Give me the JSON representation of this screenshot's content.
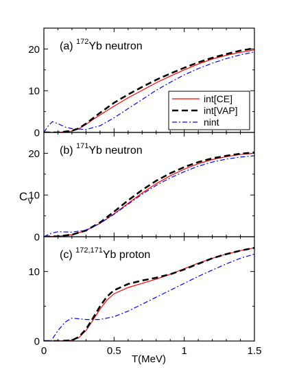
{
  "figure": {
    "ylabel_main": "C",
    "ylabel_sub": "V",
    "xlabel": "T(MeV)"
  },
  "legend": {
    "entries": [
      {
        "label": "int[CE]",
        "color": "#ff0000",
        "style": "solid"
      },
      {
        "label": "int[VAP]",
        "color": "#000000",
        "style": "dashed"
      },
      {
        "label": "nint",
        "color": "#0000ff",
        "style": "dashdot"
      }
    ]
  },
  "chart_data": [
    {
      "type": "line",
      "panel_label": {
        "prefix": "(a) ",
        "sup": "172",
        "suffix": "Yb neutron"
      },
      "xlim": [
        0,
        1.5
      ],
      "ylim": [
        0,
        25
      ],
      "x_ticks": [
        0,
        0.5,
        1,
        1.5
      ],
      "y_ticks": [
        0,
        10,
        20
      ],
      "series": [
        {
          "name": "int[CE]",
          "x": [
            0,
            0.1,
            0.2,
            0.25,
            0.3,
            0.35,
            0.4,
            0.5,
            0.6,
            0.7,
            0.8,
            0.9,
            1.0,
            1.1,
            1.2,
            1.3,
            1.4,
            1.5
          ],
          "y": [
            0,
            0,
            0.3,
            0.9,
            1.9,
            3.1,
            4.2,
            6.3,
            8.3,
            10.1,
            11.9,
            13.5,
            15.0,
            16.4,
            17.6,
            18.5,
            19.2,
            19.8
          ]
        },
        {
          "name": "int[VAP]",
          "x": [
            0,
            0.1,
            0.2,
            0.25,
            0.3,
            0.35,
            0.4,
            0.5,
            0.6,
            0.7,
            0.8,
            0.9,
            1.0,
            1.1,
            1.2,
            1.3,
            1.4,
            1.5
          ],
          "y": [
            0,
            0,
            0.4,
            1.0,
            2.1,
            3.4,
            4.7,
            7.1,
            9.1,
            10.9,
            12.6,
            14.1,
            15.5,
            16.8,
            17.9,
            18.8,
            19.6,
            20.2
          ]
        },
        {
          "name": "nint",
          "x": [
            0,
            0.03,
            0.06,
            0.1,
            0.15,
            0.2,
            0.3,
            0.4,
            0.5,
            0.6,
            0.7,
            0.8,
            0.9,
            1.0,
            1.1,
            1.2,
            1.3,
            1.4,
            1.5
          ],
          "y": [
            0,
            1.5,
            2.6,
            2.1,
            1.3,
            0.9,
            0.7,
            1.6,
            3.5,
            5.7,
            7.9,
            10.1,
            12.0,
            13.8,
            15.3,
            16.6,
            17.7,
            18.6,
            19.3
          ]
        }
      ]
    },
    {
      "type": "line",
      "panel_label": {
        "prefix": "(b) ",
        "sup": "171",
        "suffix": "Yb neutron"
      },
      "xlim": [
        0,
        1.5
      ],
      "ylim": [
        0,
        25
      ],
      "x_ticks": [
        0,
        0.5,
        1,
        1.5
      ],
      "y_ticks": [
        0,
        10,
        20
      ],
      "series": [
        {
          "name": "int[CE]",
          "x": [
            0,
            0.1,
            0.2,
            0.3,
            0.4,
            0.5,
            0.6,
            0.7,
            0.8,
            0.9,
            1.0,
            1.1,
            1.2,
            1.3,
            1.4,
            1.5
          ],
          "y": [
            0,
            0.1,
            0.5,
            1.5,
            3.2,
            5.5,
            8.0,
            10.5,
            12.7,
            14.6,
            16.2,
            17.5,
            18.5,
            19.2,
            19.7,
            20.0
          ]
        },
        {
          "name": "int[VAP]",
          "x": [
            0,
            0.1,
            0.2,
            0.3,
            0.4,
            0.5,
            0.6,
            0.7,
            0.8,
            0.9,
            1.0,
            1.1,
            1.2,
            1.3,
            1.4,
            1.5
          ],
          "y": [
            0,
            0.1,
            0.5,
            1.5,
            3.4,
            6.0,
            8.7,
            11.2,
            13.4,
            15.2,
            16.7,
            17.9,
            18.8,
            19.4,
            19.9,
            20.2
          ]
        },
        {
          "name": "nint",
          "x": [
            0,
            0.05,
            0.1,
            0.2,
            0.3,
            0.4,
            0.5,
            0.6,
            0.7,
            0.8,
            0.9,
            1.0,
            1.1,
            1.2,
            1.3,
            1.4,
            1.5
          ],
          "y": [
            0,
            0.8,
            1.2,
            1.1,
            1.6,
            3.2,
            5.4,
            7.8,
            10.2,
            12.3,
            14.1,
            15.6,
            16.9,
            17.9,
            18.6,
            19.1,
            19.4
          ]
        }
      ]
    },
    {
      "type": "line",
      "panel_label": {
        "prefix": "(c) ",
        "sup": "172,171",
        "suffix": "Yb proton"
      },
      "xlim": [
        0,
        1.5
      ],
      "ylim": [
        0,
        15
      ],
      "x_ticks": [
        0,
        0.5,
        1,
        1.5
      ],
      "y_ticks": [
        0,
        10
      ],
      "series": [
        {
          "name": "int[CE]",
          "x": [
            0,
            0.1,
            0.2,
            0.25,
            0.3,
            0.35,
            0.4,
            0.45,
            0.5,
            0.6,
            0.7,
            0.8,
            0.9,
            1.0,
            1.1,
            1.2,
            1.3,
            1.4,
            1.5
          ],
          "y": [
            0,
            0,
            0.1,
            0.5,
            1.5,
            3.0,
            4.6,
            5.9,
            6.8,
            7.7,
            8.3,
            8.9,
            9.6,
            10.4,
            11.2,
            11.9,
            12.5,
            13.0,
            13.4
          ]
        },
        {
          "name": "int[VAP]",
          "x": [
            0,
            0.1,
            0.2,
            0.25,
            0.3,
            0.35,
            0.4,
            0.45,
            0.5,
            0.6,
            0.7,
            0.8,
            0.9,
            1.0,
            1.1,
            1.2,
            1.3,
            1.4,
            1.5
          ],
          "y": [
            0,
            0,
            0.1,
            0.6,
            1.7,
            3.3,
            5.0,
            6.4,
            7.3,
            8.2,
            8.7,
            9.1,
            9.6,
            10.3,
            11.1,
            11.9,
            12.5,
            13.0,
            13.4
          ]
        },
        {
          "name": "nint",
          "x": [
            0,
            0.05,
            0.1,
            0.15,
            0.2,
            0.25,
            0.3,
            0.4,
            0.5,
            0.6,
            0.7,
            0.8,
            0.9,
            1.0,
            1.1,
            1.2,
            1.3,
            1.4,
            1.5
          ],
          "y": [
            0,
            0,
            1.5,
            2.7,
            3.3,
            3.2,
            3.1,
            3.1,
            3.5,
            4.3,
            5.3,
            6.3,
            7.3,
            8.3,
            9.3,
            10.2,
            11.1,
            11.9,
            12.5
          ]
        }
      ]
    }
  ]
}
